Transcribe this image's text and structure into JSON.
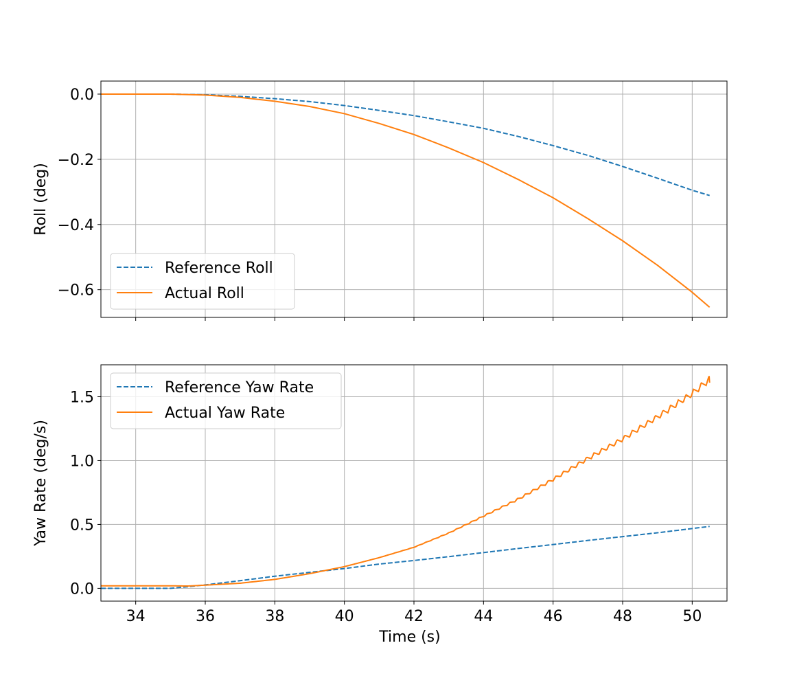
{
  "chart_data": [
    {
      "type": "line",
      "xlabel": "",
      "ylabel": "Roll (deg)",
      "xlim": [
        33.0,
        51.0
      ],
      "ylim": [
        -0.685,
        0.04
      ],
      "xticks": [
        34,
        36,
        38,
        40,
        42,
        44,
        46,
        48,
        50
      ],
      "xtick_labels_visible": false,
      "yticks": [
        0.0,
        -0.2,
        -0.4,
        -0.6
      ],
      "ytick_labels": [
        "0.0",
        "−0.2",
        "−0.4",
        "−0.6"
      ],
      "grid": true,
      "legend": "lower-left",
      "series": [
        {
          "name": "Reference Roll",
          "color": "#1f77b4",
          "style": "dashed",
          "x": [
            33.0,
            34.0,
            35.0,
            36.0,
            37.0,
            38.0,
            39.0,
            40.0,
            41.0,
            42.0,
            43.0,
            44.0,
            45.0,
            46.0,
            47.0,
            48.0,
            49.0,
            50.0,
            50.5
          ],
          "y": [
            0.0,
            0.0,
            0.0,
            -0.002,
            -0.007,
            -0.014,
            -0.023,
            -0.035,
            -0.05,
            -0.066,
            -0.085,
            -0.105,
            -0.13,
            -0.158,
            -0.188,
            -0.222,
            -0.258,
            -0.295,
            -0.311
          ]
        },
        {
          "name": "Actual Roll",
          "color": "#ff7f0e",
          "style": "solid",
          "x": [
            33.0,
            34.0,
            35.0,
            36.0,
            37.0,
            38.0,
            39.0,
            40.0,
            41.0,
            42.0,
            43.0,
            44.0,
            45.0,
            46.0,
            47.0,
            48.0,
            49.0,
            50.0,
            50.5
          ],
          "y": [
            0.0,
            0.0,
            0.0,
            -0.003,
            -0.01,
            -0.022,
            -0.038,
            -0.06,
            -0.09,
            -0.124,
            -0.165,
            -0.21,
            -0.262,
            -0.318,
            -0.382,
            -0.45,
            -0.525,
            -0.608,
            -0.654
          ]
        }
      ]
    },
    {
      "type": "line",
      "xlabel": "Time (s)",
      "ylabel": "Yaw Rate (deg/s)",
      "xlim": [
        33.0,
        51.0
      ],
      "ylim": [
        -0.1,
        1.75
      ],
      "xticks": [
        34,
        36,
        38,
        40,
        42,
        44,
        46,
        48,
        50
      ],
      "xtick_labels": [
        "34",
        "36",
        "38",
        "40",
        "42",
        "44",
        "46",
        "48",
        "50"
      ],
      "yticks": [
        0.0,
        0.5,
        1.0,
        1.5
      ],
      "ytick_labels": [
        "0.0",
        "0.5",
        "1.0",
        "1.5"
      ],
      "grid": true,
      "legend": "upper-left",
      "series": [
        {
          "name": "Reference Yaw Rate",
          "color": "#1f77b4",
          "style": "dashed",
          "x": [
            33.0,
            35.0,
            35.5,
            36.0,
            37.0,
            38.0,
            39.0,
            40.0,
            41.0,
            42.0,
            43.0,
            44.0,
            45.0,
            46.0,
            47.0,
            48.0,
            49.0,
            50.0,
            50.5
          ],
          "y": [
            0.0,
            0.0,
            0.013,
            0.027,
            0.06,
            0.095,
            0.125,
            0.155,
            0.19,
            0.218,
            0.248,
            0.28,
            0.312,
            0.343,
            0.375,
            0.405,
            0.435,
            0.468,
            0.485
          ]
        },
        {
          "name": "Actual Yaw Rate",
          "color": "#ff7f0e",
          "style": "solid",
          "x": [
            33.0,
            35.0,
            35.5,
            36.0,
            37.0,
            38.0,
            39.0,
            40.0,
            41.0,
            42.0,
            43.0,
            44.0,
            45.0,
            46.0,
            47.0,
            48.0,
            49.0,
            50.0,
            50.5
          ],
          "y": [
            0.02,
            0.02,
            0.018,
            0.025,
            0.04,
            0.07,
            0.115,
            0.17,
            0.24,
            0.32,
            0.43,
            0.56,
            0.69,
            0.84,
            1.0,
            1.15,
            1.32,
            1.5,
            1.61
          ],
          "oscillation_amplitude": 0.04
        }
      ]
    }
  ]
}
